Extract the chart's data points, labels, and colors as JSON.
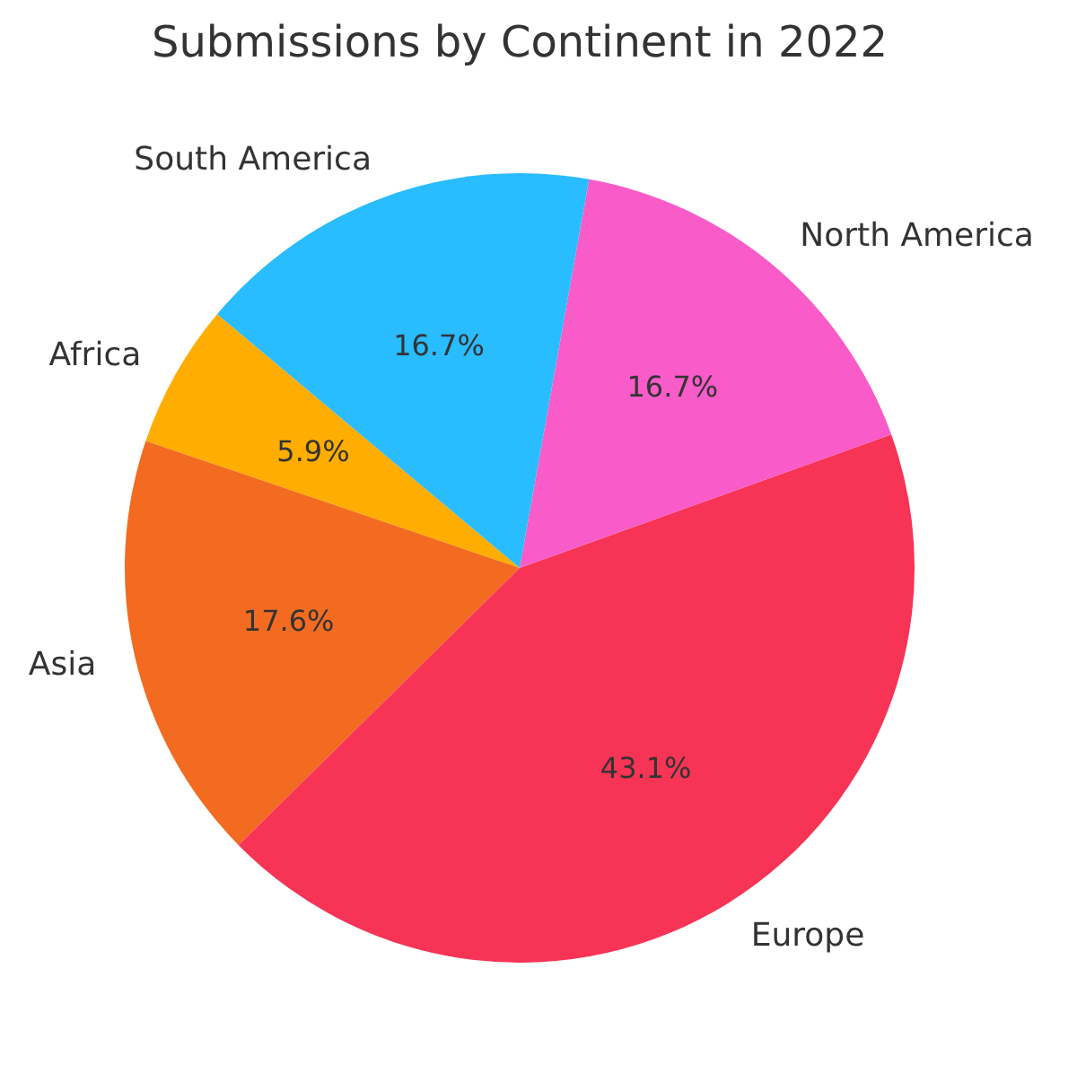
{
  "chart_data": {
    "type": "pie",
    "title": "Submissions by Continent in 2022",
    "categories": [
      "Africa",
      "Asia",
      "Europe",
      "North America",
      "South America"
    ],
    "values": [
      5.9,
      17.6,
      43.1,
      16.7,
      16.7
    ],
    "colors": [
      "#ffad00",
      "#f26b21",
      "#f73455",
      "#f95bc8",
      "#29bcff"
    ],
    "value_labels": [
      "5.9%",
      "17.6%",
      "43.1%",
      "16.7%",
      "16.7%"
    ]
  }
}
